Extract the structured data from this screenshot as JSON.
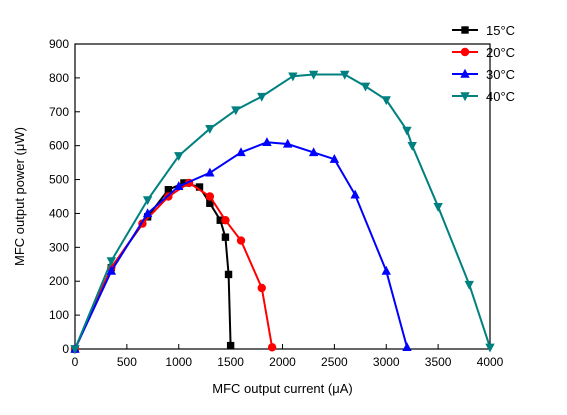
{
  "chart_data": {
    "type": "line",
    "xlabel": "MFC output current (μA)",
    "ylabel": "MFC output power (μW)",
    "xlim": [
      0,
      4000
    ],
    "ylim": [
      0,
      900
    ],
    "xticks": [
      0,
      500,
      1000,
      1500,
      2000,
      2500,
      3000,
      3500,
      4000
    ],
    "yticks": [
      0,
      100,
      200,
      300,
      400,
      500,
      600,
      700,
      800,
      900
    ],
    "grid": false,
    "legend_position": "top-right",
    "series": [
      {
        "name": "15°C",
        "color": "#000000",
        "marker": "square",
        "points": [
          [
            0,
            0
          ],
          [
            350,
            240
          ],
          [
            700,
            390
          ],
          [
            900,
            470
          ],
          [
            1050,
            490
          ],
          [
            1200,
            478
          ],
          [
            1300,
            430
          ],
          [
            1400,
            380
          ],
          [
            1450,
            330
          ],
          [
            1480,
            220
          ],
          [
            1500,
            10
          ]
        ]
      },
      {
        "name": "20°C",
        "color": "#ff0000",
        "marker": "circle",
        "points": [
          [
            0,
            0
          ],
          [
            350,
            240
          ],
          [
            650,
            370
          ],
          [
            900,
            450
          ],
          [
            1100,
            490
          ],
          [
            1300,
            450
          ],
          [
            1450,
            380
          ],
          [
            1600,
            320
          ],
          [
            1800,
            180
          ],
          [
            1900,
            5
          ]
        ]
      },
      {
        "name": "30°C",
        "color": "#0000ff",
        "marker": "triangle-up",
        "points": [
          [
            0,
            0
          ],
          [
            350,
            230
          ],
          [
            700,
            400
          ],
          [
            1000,
            480
          ],
          [
            1300,
            520
          ],
          [
            1600,
            580
          ],
          [
            1850,
            610
          ],
          [
            2050,
            605
          ],
          [
            2300,
            580
          ],
          [
            2500,
            560
          ],
          [
            2700,
            455
          ],
          [
            3000,
            230
          ],
          [
            3200,
            5
          ]
        ]
      },
      {
        "name": "40°C",
        "color": "#008080",
        "marker": "triangle-down",
        "points": [
          [
            0,
            0
          ],
          [
            350,
            260
          ],
          [
            700,
            440
          ],
          [
            1000,
            570
          ],
          [
            1300,
            650
          ],
          [
            1550,
            705
          ],
          [
            1800,
            745
          ],
          [
            2100,
            805
          ],
          [
            2300,
            810
          ],
          [
            2600,
            810
          ],
          [
            2800,
            775
          ],
          [
            3000,
            735
          ],
          [
            3200,
            645
          ],
          [
            3250,
            600
          ],
          [
            3500,
            420
          ],
          [
            3800,
            190
          ],
          [
            4000,
            5
          ]
        ]
      }
    ]
  }
}
